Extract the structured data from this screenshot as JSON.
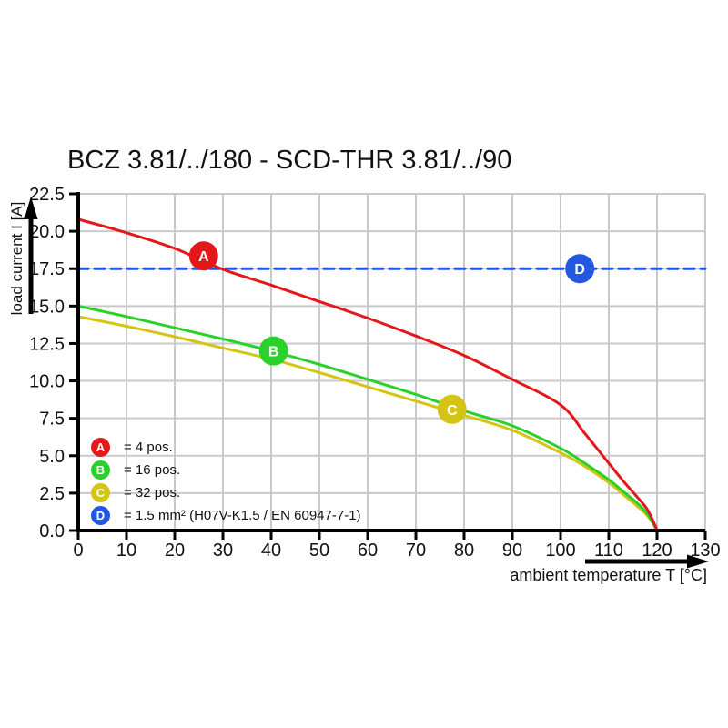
{
  "title": "BCZ 3.81/../180 - SCD-THR 3.81/../90",
  "colors": {
    "series_a_red": "#e2181b",
    "series_b_green": "#2bd12b",
    "series_c_yellow": "#d4c414",
    "series_d_blue": "#2257e2",
    "grid": "#c9c9c9",
    "axis": "#000000",
    "marker_letter": "#ffffff"
  },
  "chart_data": {
    "type": "line",
    "title": "BCZ 3.81/../180 - SCD-THR 3.81/../90",
    "xlabel": "ambient temperature T [°C]",
    "ylabel": "load current I [A]",
    "xlim": [
      0,
      130
    ],
    "ylim": [
      0,
      22.5
    ],
    "grid": true,
    "legend_position": "lower-left",
    "x_ticks": [
      "0",
      "10",
      "20",
      "30",
      "40",
      "50",
      "60",
      "70",
      "80",
      "90",
      "100",
      "110",
      "120",
      "130"
    ],
    "y_ticks": [
      "0.0",
      "2.5",
      "5.0",
      "7.5",
      "10.0",
      "12.5",
      "15.0",
      "17.5",
      "20.0",
      "22.5"
    ],
    "series": [
      {
        "name": "A",
        "label": "= 4 pos.",
        "color": "#e2181b",
        "style": "solid",
        "points": [
          [
            0,
            20.8
          ],
          [
            10,
            19.9
          ],
          [
            20,
            18.85
          ],
          [
            30,
            17.45
          ],
          [
            40,
            16.4
          ],
          [
            50,
            15.3
          ],
          [
            60,
            14.2
          ],
          [
            70,
            13.0
          ],
          [
            80,
            11.7
          ],
          [
            90,
            10.1
          ],
          [
            100,
            8.4
          ],
          [
            105,
            6.5
          ],
          [
            110,
            4.5
          ],
          [
            113,
            3.3
          ],
          [
            116,
            2.2
          ],
          [
            118,
            1.4
          ],
          [
            119.5,
            0.4
          ],
          [
            120,
            0
          ]
        ]
      },
      {
        "name": "B",
        "label": "= 16 pos.",
        "color": "#2bd12b",
        "style": "solid",
        "points": [
          [
            0,
            15.0
          ],
          [
            10,
            14.3
          ],
          [
            20,
            13.55
          ],
          [
            30,
            12.8
          ],
          [
            40,
            12.0
          ],
          [
            50,
            11.1
          ],
          [
            60,
            10.1
          ],
          [
            70,
            9.1
          ],
          [
            80,
            8.0
          ],
          [
            90,
            7.0
          ],
          [
            100,
            5.5
          ],
          [
            105,
            4.5
          ],
          [
            110,
            3.4
          ],
          [
            113,
            2.6
          ],
          [
            116,
            1.8
          ],
          [
            118,
            1.1
          ],
          [
            119.5,
            0.3
          ],
          [
            120,
            0
          ]
        ]
      },
      {
        "name": "C",
        "label": "= 32 pos.",
        "color": "#d4c414",
        "style": "solid",
        "points": [
          [
            0,
            14.3
          ],
          [
            10,
            13.65
          ],
          [
            20,
            12.95
          ],
          [
            30,
            12.2
          ],
          [
            40,
            11.45
          ],
          [
            50,
            10.55
          ],
          [
            60,
            9.6
          ],
          [
            70,
            8.65
          ],
          [
            80,
            7.7
          ],
          [
            90,
            6.7
          ],
          [
            100,
            5.2
          ],
          [
            105,
            4.3
          ],
          [
            110,
            3.2
          ],
          [
            113,
            2.4
          ],
          [
            116,
            1.6
          ],
          [
            118,
            1.0
          ],
          [
            119.5,
            0.3
          ],
          [
            120,
            0
          ]
        ]
      },
      {
        "name": "D",
        "label": "= 1.5 mm² (H07V-K1.5 / EN 60947-7-1)",
        "color": "#2257e2",
        "style": "dashed",
        "points": [
          [
            0,
            17.5
          ],
          [
            130,
            17.5
          ]
        ]
      }
    ],
    "markers": [
      {
        "letter": "A",
        "x": 26,
        "y": 18.35,
        "color": "#e2181b"
      },
      {
        "letter": "B",
        "x": 40.5,
        "y": 12.0,
        "color": "#2bd12b"
      },
      {
        "letter": "C",
        "x": 77.5,
        "y": 8.1,
        "color": "#d4c414"
      },
      {
        "letter": "D",
        "x": 104,
        "y": 17.5,
        "color": "#2257e2"
      }
    ]
  },
  "legend": {
    "items": [
      {
        "letter": "A",
        "label": "= 4 pos.",
        "color": "#e2181b"
      },
      {
        "letter": "B",
        "label": "= 16 pos.",
        "color": "#2bd12b"
      },
      {
        "letter": "C",
        "label": "= 32 pos.",
        "color": "#d4c414"
      },
      {
        "letter": "D",
        "label": "= 1.5 mm² (H07V-K1.5 / EN 60947-7-1)",
        "color": "#2257e2"
      }
    ]
  },
  "axes": {
    "x_label": "ambient temperature T [°C]",
    "y_label": "load current I [A]"
  }
}
